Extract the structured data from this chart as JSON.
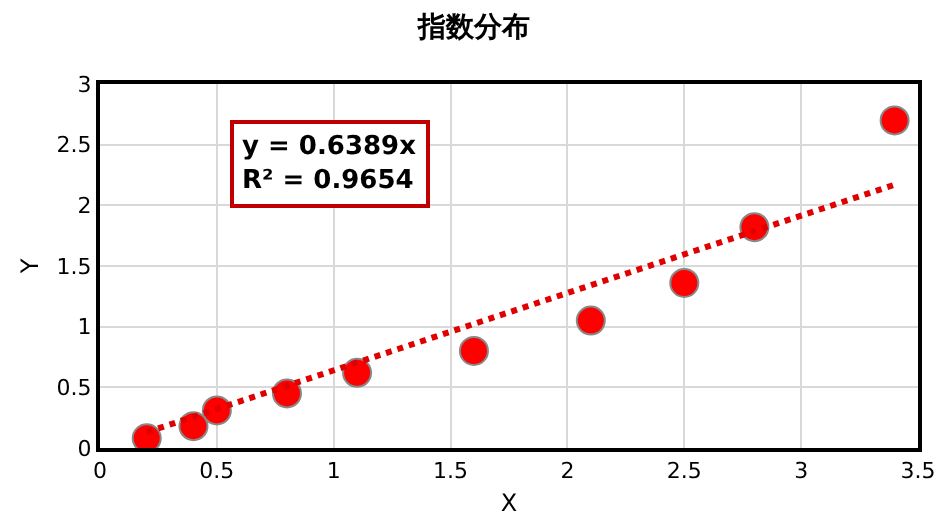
{
  "chart_data": {
    "type": "scatter",
    "title": "指数分布",
    "xlabel": "X",
    "ylabel": "Y",
    "x": [
      0.2,
      0.4,
      0.5,
      0.8,
      1.1,
      1.6,
      2.1,
      2.5,
      2.8,
      3.4
    ],
    "series": [
      {
        "color": "#ff0000",
        "marker": "circle",
        "values": [
          0.08,
          0.18,
          0.31,
          0.45,
          0.62,
          0.8,
          1.05,
          1.36,
          1.82,
          2.7
        ]
      },
      {
        "type": "line",
        "color": "#e00000",
        "line_style": "dotted",
        "marker": "none",
        "x": [
          0.2,
          3.4
        ],
        "values": [
          0.13,
          2.17
        ]
      }
    ],
    "annotations": [
      "y = 0.6389x\nR² = 0.9654"
    ],
    "xlim": [
      0,
      3.5
    ],
    "xticks": [
      0,
      0.5,
      1,
      1.5,
      2,
      2.5,
      3,
      3.5
    ],
    "ylim": [
      0,
      3
    ],
    "yticks": [
      0,
      0.5,
      1,
      1.5,
      2,
      2.5,
      3
    ],
    "grid": true
  }
}
